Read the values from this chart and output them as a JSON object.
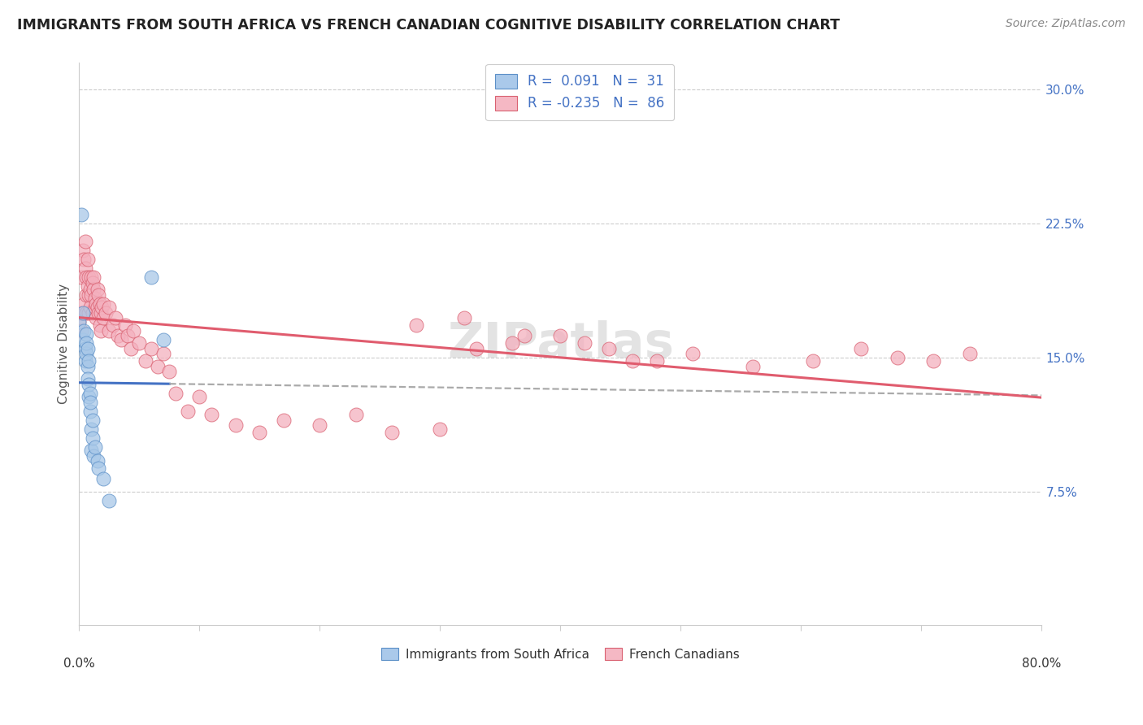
{
  "title": "IMMIGRANTS FROM SOUTH AFRICA VS FRENCH CANADIAN COGNITIVE DISABILITY CORRELATION CHART",
  "source": "Source: ZipAtlas.com",
  "ylabel": "Cognitive Disability",
  "ytick_values": [
    0.075,
    0.15,
    0.225,
    0.3
  ],
  "ytick_labels": [
    "7.5%",
    "15.0%",
    "22.5%",
    "30.0%"
  ],
  "xlim": [
    0.0,
    0.8
  ],
  "ylim": [
    0.0,
    0.315
  ],
  "legend1_label": "R =  0.091   N =  31",
  "legend2_label": "R = -0.235   N =  86",
  "legend1_face": "#aac9ea",
  "legend2_face": "#f5b8c4",
  "trend1_color": "#4472c4",
  "trend2_color": "#e05c6e",
  "trend1_dashed_color": "#aaaaaa",
  "scatter1_face": "#a8c8e8",
  "scatter2_face": "#f4b0be",
  "scatter1_edge": "#5b8fc7",
  "scatter2_edge": "#d96070",
  "watermark": "ZIPatlas",
  "sa_x": [
    0.0,
    0.002,
    0.003,
    0.003,
    0.004,
    0.005,
    0.005,
    0.006,
    0.006,
    0.006,
    0.007,
    0.007,
    0.007,
    0.008,
    0.008,
    0.008,
    0.009,
    0.009,
    0.009,
    0.01,
    0.01,
    0.011,
    0.011,
    0.012,
    0.013,
    0.015,
    0.016,
    0.02,
    0.025,
    0.06,
    0.07
  ],
  "sa_y": [
    0.17,
    0.23,
    0.16,
    0.175,
    0.165,
    0.155,
    0.148,
    0.163,
    0.152,
    0.158,
    0.145,
    0.138,
    0.155,
    0.128,
    0.135,
    0.148,
    0.13,
    0.12,
    0.125,
    0.098,
    0.11,
    0.105,
    0.115,
    0.095,
    0.1,
    0.092,
    0.088,
    0.082,
    0.07,
    0.195,
    0.16
  ],
  "fc_x": [
    0.0,
    0.001,
    0.002,
    0.002,
    0.003,
    0.003,
    0.004,
    0.004,
    0.005,
    0.005,
    0.006,
    0.006,
    0.006,
    0.007,
    0.007,
    0.008,
    0.008,
    0.008,
    0.009,
    0.009,
    0.01,
    0.01,
    0.011,
    0.011,
    0.012,
    0.012,
    0.013,
    0.013,
    0.014,
    0.014,
    0.015,
    0.015,
    0.016,
    0.016,
    0.017,
    0.017,
    0.018,
    0.018,
    0.019,
    0.02,
    0.02,
    0.022,
    0.025,
    0.025,
    0.028,
    0.03,
    0.032,
    0.035,
    0.038,
    0.04,
    0.043,
    0.045,
    0.05,
    0.055,
    0.06,
    0.065,
    0.07,
    0.075,
    0.08,
    0.09,
    0.1,
    0.11,
    0.13,
    0.15,
    0.17,
    0.2,
    0.23,
    0.26,
    0.3,
    0.33,
    0.37,
    0.42,
    0.46,
    0.51,
    0.56,
    0.61,
    0.65,
    0.68,
    0.71,
    0.74,
    0.28,
    0.32,
    0.36,
    0.4,
    0.44,
    0.48
  ],
  "fc_y": [
    0.17,
    0.175,
    0.165,
    0.195,
    0.175,
    0.21,
    0.18,
    0.205,
    0.2,
    0.215,
    0.185,
    0.195,
    0.175,
    0.19,
    0.205,
    0.185,
    0.175,
    0.195,
    0.188,
    0.178,
    0.195,
    0.185,
    0.192,
    0.175,
    0.188,
    0.195,
    0.178,
    0.183,
    0.172,
    0.18,
    0.188,
    0.178,
    0.185,
    0.175,
    0.18,
    0.168,
    0.175,
    0.165,
    0.178,
    0.172,
    0.18,
    0.175,
    0.165,
    0.178,
    0.168,
    0.172,
    0.162,
    0.16,
    0.168,
    0.162,
    0.155,
    0.165,
    0.158,
    0.148,
    0.155,
    0.145,
    0.152,
    0.142,
    0.13,
    0.12,
    0.128,
    0.118,
    0.112,
    0.108,
    0.115,
    0.112,
    0.118,
    0.108,
    0.11,
    0.155,
    0.162,
    0.158,
    0.148,
    0.152,
    0.145,
    0.148,
    0.155,
    0.15,
    0.148,
    0.152,
    0.168,
    0.172,
    0.158,
    0.162,
    0.155,
    0.148
  ]
}
